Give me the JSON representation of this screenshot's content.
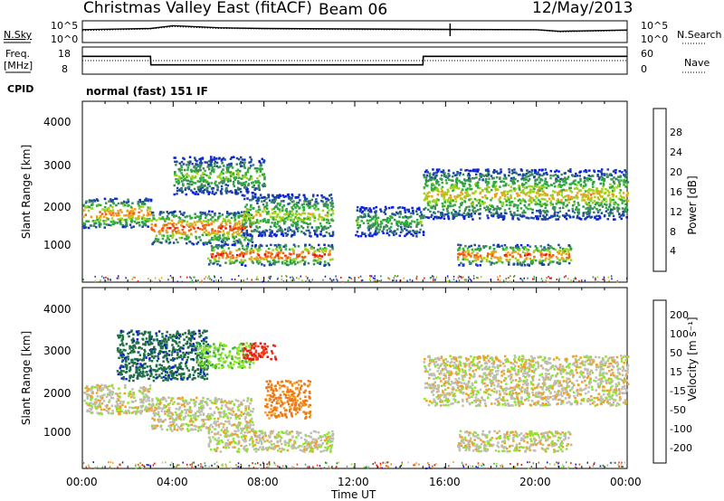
{
  "header": {
    "title": "Christmas Valley East (fitACF)",
    "beam": "Beam 06",
    "date": "12/May/2013"
  },
  "noise_panel": {
    "left_label": "N.Sky",
    "left_ticks": [
      "10^5",
      "10^0"
    ],
    "right_label": "N.Search",
    "right_ticks": [
      "10^5",
      "10^0"
    ]
  },
  "freq_panel": {
    "left_label_1": "Freq.",
    "left_label_2": "[MHz]",
    "left_ticks": [
      "18",
      "8"
    ],
    "right_label": "Nave",
    "right_ticks": [
      "60",
      "0"
    ]
  },
  "cpid": {
    "label": "CPID",
    "value": "normal (fast) 151 IF"
  },
  "power_panel": {
    "ylabel": "Slant Range [km]",
    "yticks": [
      "4000",
      "3000",
      "2000",
      "1000"
    ],
    "colorbar_label": "Power [dB]",
    "colorbar_ticks": [
      "28",
      "24",
      "20",
      "16",
      "12",
      "8",
      "4"
    ],
    "colors": [
      "#0a1ee6",
      "#1e4a9e",
      "#3c8c5a",
      "#2fae3a",
      "#9ed21e",
      "#f0a020",
      "#f06010",
      "#e61414"
    ]
  },
  "velocity_panel": {
    "ylabel": "Slant Range [km]",
    "yticks": [
      "4000",
      "3000",
      "2000",
      "1000"
    ],
    "colorbar_label": "Velocity [m s⁻¹]",
    "colorbar_ticks": [
      "200",
      "100",
      "50",
      "15",
      "-15",
      "-50",
      "-100",
      "-200"
    ],
    "colors": [
      "#0a1ec8",
      "#1e6e46",
      "#3cb43c",
      "#8ce628",
      "#bebeb4",
      "#f0a028",
      "#f07814",
      "#f03c14",
      "#e61414"
    ]
  },
  "x_axis": {
    "label": "Time UT",
    "ticks": [
      "00:00",
      "04:00",
      "08:00",
      "12:00",
      "16:00",
      "20:00",
      "00:00"
    ]
  },
  "chart_data": [
    {
      "type": "line",
      "title": "N.Sky / N.Search",
      "x": [
        "00:00",
        "03:00",
        "04:00",
        "06:00",
        "08:00",
        "12:00",
        "16:00",
        "20:00",
        "21:00",
        "24:00"
      ],
      "series": [
        {
          "name": "N.Sky",
          "values": [
            1000,
            2000,
            10000,
            3000,
            2000,
            1500,
            1200,
            1000,
            400,
            800
          ]
        },
        {
          "name": "N.Search",
          "values": [
            600,
            1500,
            6000,
            2000,
            1500,
            1000,
            900,
            800,
            250,
            600
          ]
        }
      ],
      "ylim": [
        1,
        100000
      ]
    },
    {
      "type": "line",
      "title": "Freq. [MHz] / Nave",
      "x": [
        "00:00",
        "03:00",
        "03:01",
        "15:00",
        "15:01",
        "24:00"
      ],
      "series": [
        {
          "name": "Freq.",
          "values": [
            14.8,
            14.8,
            11.2,
            11.2,
            14.8,
            14.8
          ]
        },
        {
          "name": "Nave",
          "values": [
            30,
            30,
            30,
            30,
            30,
            30
          ]
        }
      ],
      "ylim": [
        8,
        18
      ]
    },
    {
      "type": "heatmap",
      "title": "Power [dB]",
      "xlabel": "Time UT",
      "ylabel": "Slant Range [km]",
      "xlim": [
        0,
        24
      ],
      "ylim": [
        180,
        4500
      ],
      "value_range": [
        0,
        30
      ],
      "bands": [
        {
          "t": [
            0,
            3
          ],
          "r": [
            1500,
            2200
          ],
          "peak": 24
        },
        {
          "t": [
            3,
            7.5
          ],
          "r": [
            1100,
            1900
          ],
          "peak": 26
        },
        {
          "t": [
            5.5,
            11
          ],
          "r": [
            600,
            1100
          ],
          "peak": 28
        },
        {
          "t": [
            7,
            11
          ],
          "r": [
            1300,
            2300
          ],
          "peak": 18
        },
        {
          "t": [
            4,
            8
          ],
          "r": [
            2300,
            3200
          ],
          "peak": 16
        },
        {
          "t": [
            12,
            15
          ],
          "r": [
            1300,
            2000
          ],
          "peak": 14
        },
        {
          "t": [
            15,
            24
          ],
          "r": [
            1700,
            2900
          ],
          "peak": 20
        },
        {
          "t": [
            16.5,
            21.5
          ],
          "r": [
            600,
            1100
          ],
          "peak": 26
        }
      ]
    },
    {
      "type": "heatmap",
      "title": "Velocity [m s-1]",
      "xlabel": "Time UT",
      "ylabel": "Slant Range [km]",
      "xlim": [
        0,
        24
      ],
      "ylim": [
        180,
        4500
      ],
      "value_range": [
        -200,
        200
      ],
      "bands": [
        {
          "t": [
            0,
            3
          ],
          "r": [
            1500,
            2200
          ],
          "v": 0
        },
        {
          "t": [
            3,
            7.5
          ],
          "r": [
            1100,
            1900
          ],
          "v": 0
        },
        {
          "t": [
            5.5,
            11
          ],
          "r": [
            600,
            1100
          ],
          "v": 0
        },
        {
          "t": [
            8,
            10
          ],
          "r": [
            1400,
            2300
          ],
          "v": -60
        },
        {
          "t": [
            1.5,
            5.5
          ],
          "r": [
            2300,
            3500
          ],
          "v": 180
        },
        {
          "t": [
            5,
            7.5
          ],
          "r": [
            2600,
            3200
          ],
          "v": 40
        },
        {
          "t": [
            7,
            8.5
          ],
          "r": [
            2800,
            3200
          ],
          "v": -200
        },
        {
          "t": [
            15,
            24
          ],
          "r": [
            1700,
            2900
          ],
          "v": 0
        },
        {
          "t": [
            16.5,
            21.5
          ],
          "r": [
            600,
            1100
          ],
          "v": 0
        }
      ]
    }
  ]
}
